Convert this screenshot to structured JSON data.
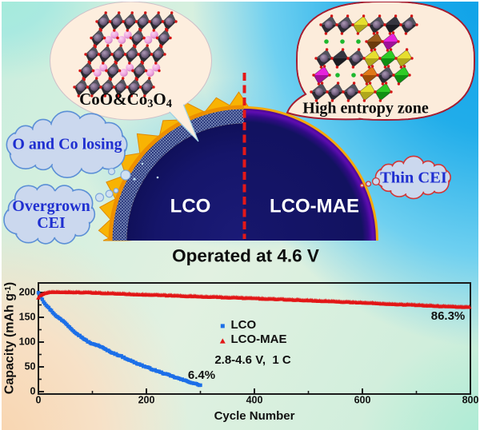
{
  "figure": {
    "operated_label": "Operated at 4.6 V",
    "dome": {
      "left_label": "LCO",
      "right_label": "LCO-MAE"
    },
    "bubbles": {
      "left": {
        "label_parts": [
          {
            "t": "CoO&Co"
          },
          {
            "t": "3",
            "sub": true
          },
          {
            "t": "O"
          },
          {
            "t": "4",
            "sub": true
          }
        ],
        "lattice": [
          [
            "g",
            "g",
            "g",
            "g",
            "g",
            "g"
          ],
          [
            "g",
            "p",
            "p",
            "g",
            "p",
            "g"
          ],
          [
            "g",
            "g",
            "g",
            "g",
            "g",
            "g"
          ],
          [
            "g",
            "p",
            "g",
            "p",
            "g",
            "p"
          ],
          [
            "g",
            "g",
            "g",
            "g",
            "g",
            "g"
          ]
        ]
      },
      "right": {
        "label": "High entropy zone",
        "lattice": [
          [
            "g",
            "g",
            "y",
            "g",
            "d",
            "g"
          ],
          [
            "e",
            "e",
            "e",
            "br",
            "m",
            "x"
          ],
          [
            "g",
            "d",
            "g",
            "y",
            "gr",
            "y"
          ],
          [
            "m",
            "e",
            "e",
            "o",
            "g",
            "gr"
          ],
          [
            "g",
            "g",
            "g",
            "y",
            "gr",
            "x"
          ]
        ]
      }
    },
    "clouds": {
      "o_co_losing": "O and Co losing",
      "overgrown_line1": "Overgrown",
      "overgrown_line2": "CEI",
      "thin_cei": "Thin CEI"
    },
    "colors": {
      "dome_navy": "#15156a",
      "dome_purple_rim": "#5c0cae",
      "cei_amber": "#f8b303",
      "coating_base": "#7a8bbd",
      "coating_dark": "#23307a",
      "divider_red": "#e41818",
      "cloud_fill": "#cbd8ee",
      "cloud_stroke_blue": "#5b8fd6",
      "cloud_stroke_red": "#d23535",
      "cloud_text_blue": "#1f2fd0",
      "bubble_left_fill": "#fdeede",
      "bubble_right_fill": "#fcecdb",
      "bubble_right_stroke": "#a51d30",
      "octa_gray": [
        "#52525e",
        "#2b2b33"
      ],
      "octa_dark": [
        "#35353f",
        "#1b1b21"
      ],
      "octa_yellow": [
        "#e6df2e",
        "#b0a81a"
      ],
      "octa_magenta": [
        "#e623dd",
        "#a01099"
      ],
      "octa_green": [
        "#2ecb25",
        "#0f8f12"
      ],
      "octa_orange": [
        "#e07818",
        "#9e4e08"
      ],
      "octa_brown": [
        "#9a5c1c",
        "#6b3a0c"
      ],
      "vertex_dot_red": "#d41414",
      "interstitial_green": "#1eb82e"
    }
  },
  "chart_data": {
    "type": "scatter",
    "xlabel": "Cycle Number",
    "ylabel_parts": [
      {
        "t": "Capacity (mAh g"
      },
      {
        "t": "-1",
        "sup": true
      },
      {
        "t": ")"
      }
    ],
    "xlim": [
      0,
      800
    ],
    "ylim": [
      0,
      220
    ],
    "xticks": [
      0,
      200,
      400,
      600,
      800
    ],
    "yticks": [
      0,
      50,
      100,
      150,
      200
    ],
    "annotation": "2.8-4.6 V,  1 C",
    "legend_position": "center",
    "grid": false,
    "series": [
      {
        "name": "LCO",
        "marker": "square",
        "color": "#1c6fe8",
        "retention_label": "6.4%",
        "points": [
          [
            0,
            200
          ],
          [
            5,
            191
          ],
          [
            10,
            181
          ],
          [
            15,
            174
          ],
          [
            20,
            168
          ],
          [
            25,
            162
          ],
          [
            30,
            156
          ],
          [
            35,
            151
          ],
          [
            40,
            147
          ],
          [
            45,
            143
          ],
          [
            50,
            139
          ],
          [
            55,
            133
          ],
          [
            60,
            128
          ],
          [
            65,
            123
          ],
          [
            70,
            118
          ],
          [
            75,
            114
          ],
          [
            80,
            110
          ],
          [
            85,
            106
          ],
          [
            90,
            102
          ],
          [
            95,
            99
          ],
          [
            100,
            96
          ],
          [
            105,
            94.5
          ],
          [
            110,
            94
          ],
          [
            115,
            91
          ],
          [
            120,
            88
          ],
          [
            125,
            85
          ],
          [
            130,
            82
          ],
          [
            135,
            79.5
          ],
          [
            140,
            77
          ],
          [
            145,
            75
          ],
          [
            150,
            73
          ],
          [
            155,
            70.5
          ],
          [
            160,
            68
          ],
          [
            165,
            65.5
          ],
          [
            170,
            63
          ],
          [
            175,
            60.5
          ],
          [
            180,
            58
          ],
          [
            185,
            56
          ],
          [
            190,
            54
          ],
          [
            195,
            51.5
          ],
          [
            200,
            49.5
          ],
          [
            210,
            45.5
          ],
          [
            220,
            41.5
          ],
          [
            230,
            37.5
          ],
          [
            240,
            34
          ],
          [
            250,
            30
          ],
          [
            260,
            26.5
          ],
          [
            270,
            23
          ],
          [
            280,
            19.5
          ],
          [
            290,
            16
          ],
          [
            300,
            13
          ]
        ]
      },
      {
        "name": "LCO-MAE",
        "marker": "triangle",
        "color": "#e21616",
        "retention_label": "86.3%",
        "points": [
          [
            0,
            190
          ],
          [
            3,
            193.5
          ],
          [
            6,
            196
          ],
          [
            10,
            198
          ],
          [
            15,
            199.5
          ],
          [
            20,
            200.3
          ],
          [
            30,
            200.8
          ],
          [
            40,
            201
          ],
          [
            60,
            200.8
          ],
          [
            80,
            200.3
          ],
          [
            100,
            199.7
          ],
          [
            125,
            198.7
          ],
          [
            150,
            197.7
          ],
          [
            175,
            196.7
          ],
          [
            200,
            195.7
          ],
          [
            225,
            194.8
          ],
          [
            250,
            193.9
          ],
          [
            275,
            193
          ],
          [
            300,
            192
          ],
          [
            325,
            191.1
          ],
          [
            350,
            190.2
          ],
          [
            375,
            189.3
          ],
          [
            400,
            188.3
          ],
          [
            425,
            187.3
          ],
          [
            450,
            186.3
          ],
          [
            475,
            185.3
          ],
          [
            500,
            184.2
          ],
          [
            525,
            183.1
          ],
          [
            550,
            182
          ],
          [
            575,
            180.8
          ],
          [
            600,
            179.6
          ],
          [
            625,
            178.4
          ],
          [
            650,
            177.2
          ],
          [
            675,
            176
          ],
          [
            700,
            174.8
          ],
          [
            725,
            173.6
          ],
          [
            750,
            172.4
          ],
          [
            775,
            171.4
          ],
          [
            800,
            170.4
          ]
        ]
      }
    ]
  }
}
